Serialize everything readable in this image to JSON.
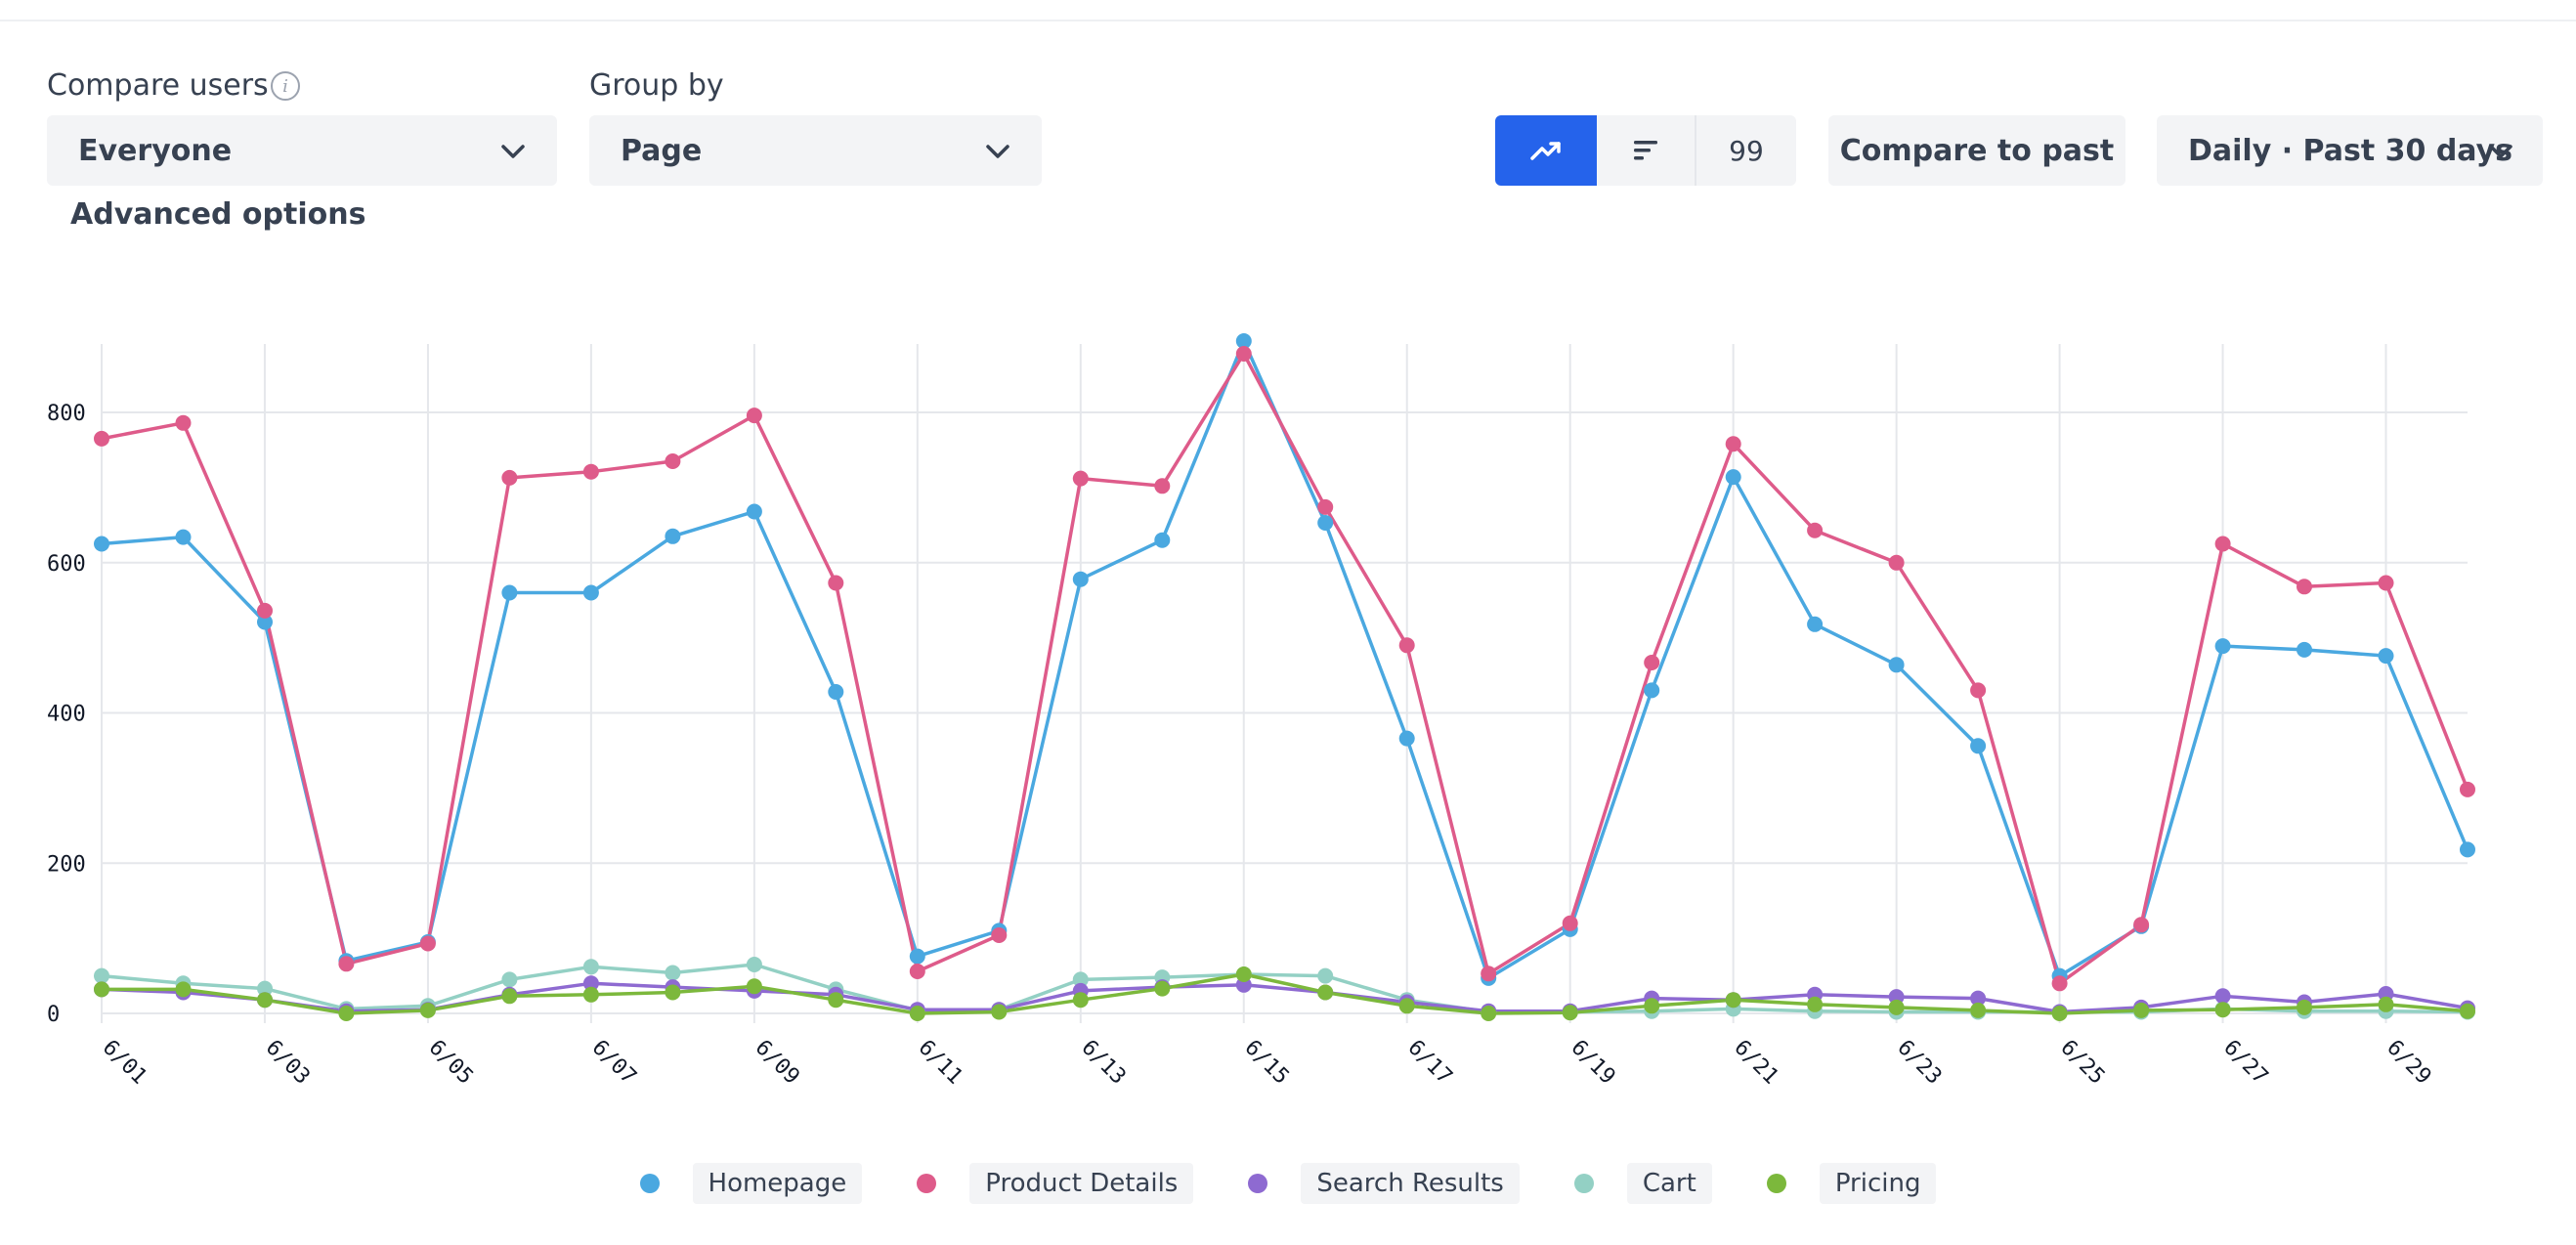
{
  "controls": {
    "compare_label": "Compare users",
    "compare_value": "Everyone",
    "group_label": "Group by",
    "group_value": "Page",
    "count_value": "99",
    "compare_past": "Compare to past",
    "range_value": "Daily · Past 30 days",
    "advanced": "Advanced options"
  },
  "icons": {
    "info": "info-icon",
    "chevron": "chevron-down-icon",
    "trend": "trending-up-icon",
    "bars": "bar-list-icon"
  },
  "colors": {
    "accent": "#2563eb",
    "Homepage": "#4aa8e0",
    "Product Details": "#de5b8a",
    "Search Results": "#8e6ad1",
    "Cart": "#93d0c4",
    "Pricing": "#7cb83c"
  },
  "chart_data": {
    "type": "line",
    "title": "",
    "xlabel": "",
    "ylabel": "",
    "ylim": [
      0,
      900
    ],
    "yticks": [
      0,
      200,
      400,
      600,
      800
    ],
    "grid": true,
    "legend_position": "bottom-center",
    "x": [
      "6/01",
      "6/02",
      "6/03",
      "6/04",
      "6/05",
      "6/06",
      "6/07",
      "6/08",
      "6/09",
      "6/10",
      "6/11",
      "6/12",
      "6/13",
      "6/14",
      "6/15",
      "6/16",
      "6/17",
      "6/18",
      "6/19",
      "6/20",
      "6/21",
      "6/22",
      "6/23",
      "6/24",
      "6/25",
      "6/26",
      "6/27",
      "6/28",
      "6/29",
      "6/30"
    ],
    "xtick_labels": [
      "6/01",
      "6/03",
      "6/05",
      "6/07",
      "6/09",
      "6/11",
      "6/13",
      "6/15",
      "6/17",
      "6/19",
      "6/21",
      "6/23",
      "6/25",
      "6/27",
      "6/29"
    ],
    "series": [
      {
        "name": "Homepage",
        "values": [
          625,
          634,
          521,
          70,
          95,
          560,
          560,
          635,
          668,
          428,
          76,
          110,
          578,
          630,
          895,
          653,
          366,
          47,
          112,
          430,
          714,
          518,
          464,
          356,
          50,
          116,
          489,
          484,
          476,
          218
        ]
      },
      {
        "name": "Product Details",
        "values": [
          765,
          786,
          536,
          66,
          93,
          713,
          721,
          735,
          796,
          573,
          56,
          104,
          712,
          702,
          878,
          674,
          490,
          53,
          120,
          467,
          758,
          643,
          600,
          430,
          40,
          118,
          625,
          568,
          573,
          298
        ]
      },
      {
        "name": "Search Results",
        "values": [
          32,
          28,
          18,
          3,
          5,
          25,
          40,
          35,
          30,
          25,
          5,
          5,
          30,
          35,
          38,
          28,
          15,
          3,
          3,
          20,
          18,
          25,
          22,
          20,
          2,
          8,
          23,
          15,
          26,
          7
        ]
      },
      {
        "name": "Cart",
        "values": [
          50,
          40,
          33,
          6,
          10,
          45,
          62,
          54,
          65,
          32,
          4,
          5,
          45,
          48,
          52,
          50,
          18,
          2,
          2,
          3,
          6,
          3,
          2,
          2,
          2,
          2,
          6,
          3,
          3,
          2
        ]
      },
      {
        "name": "Pricing",
        "values": [
          32,
          32,
          18,
          0,
          4,
          23,
          25,
          28,
          36,
          18,
          0,
          2,
          18,
          33,
          52,
          28,
          10,
          0,
          1,
          10,
          18,
          12,
          8,
          4,
          0,
          4,
          5,
          8,
          12,
          3
        ]
      }
    ]
  }
}
